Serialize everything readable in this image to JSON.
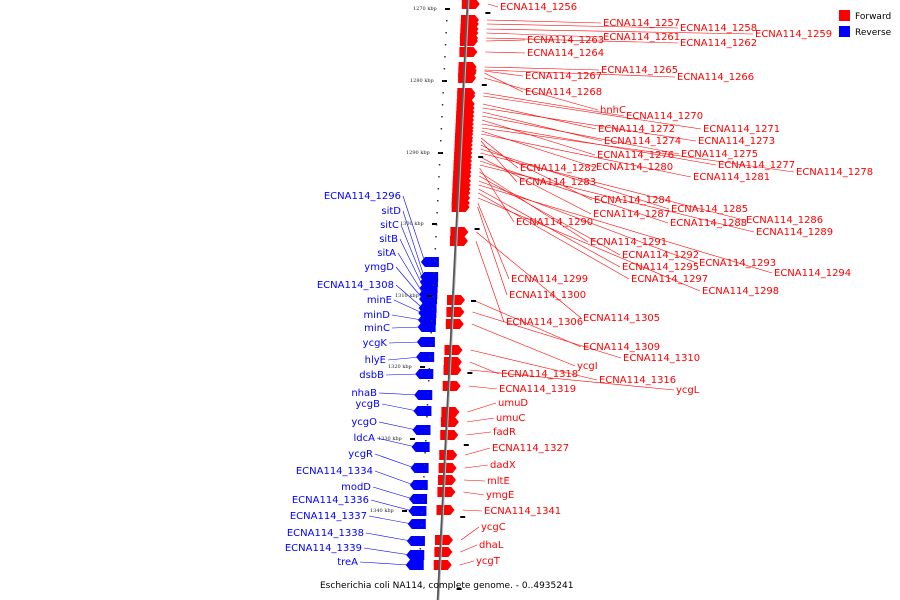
{
  "caption": "Escherichia coli NA114, complete genome. - 0..4935241",
  "legend": [
    {
      "label": "Forward",
      "color": "#ff0000"
    },
    {
      "label": "Reverse",
      "color": "#0000ff"
    }
  ],
  "colors": {
    "forward": "#ff0000",
    "reverse": "#0000ff",
    "backbone": "#888888"
  },
  "ticks": [
    "1270 kbp",
    "1280 kbp",
    "1290 kbp",
    "1300 kbp",
    "1310 kbp",
    "1320 kbp",
    "1330 kbp",
    "1340 kbp"
  ],
  "forward_genes": [
    "ECNA114_1256",
    "ECNA114_1257",
    "ECNA114_1258",
    "ECNA114_1259",
    "ECNA114_1261",
    "ECNA114_1262",
    "ECNA114_1263",
    "ECNA114_1264",
    "ECNA114_1265",
    "ECNA114_1266",
    "ECNA114_1267",
    "ECNA114_1268",
    "hnhC",
    "ECNA114_1270",
    "ECNA114_1271",
    "ECNA114_1272",
    "ECNA114_1273",
    "ECNA114_1274",
    "ECNA114_1275",
    "ECNA114_1276",
    "ECNA114_1277",
    "ECNA114_1278",
    "ECNA114_1280",
    "ECNA114_1281",
    "ECNA114_1282",
    "ECNA114_1283",
    "ECNA114_1284",
    "ECNA114_1285",
    "ECNA114_1286",
    "ECNA114_1287",
    "ECNA114_1288",
    "ECNA114_1289",
    "ECNA114_1290",
    "ECNA114_1291",
    "ECNA114_1292",
    "ECNA114_1293",
    "ECNA114_1294",
    "ECNA114_1295",
    "ECNA114_1297",
    "ECNA114_1298",
    "ECNA114_1299",
    "ECNA114_1300",
    "ECNA114_1305",
    "ECNA114_1306",
    "ECNA114_1309",
    "ECNA114_1310",
    "ycgI",
    "ECNA114_1316",
    "ECNA114_1318",
    "ycgL",
    "ECNA114_1319",
    "umuD",
    "umuC",
    "fadR",
    "ECNA114_1327",
    "dadX",
    "mltE",
    "ymgE",
    "ECNA114_1341",
    "ycgC",
    "dhaL",
    "ycgT"
  ],
  "reverse_genes": [
    "ECNA114_1296",
    "sitD",
    "sitC",
    "sitB",
    "sitA",
    "ymgD",
    "ECNA114_1308",
    "minE",
    "minD",
    "minC",
    "ycgK",
    "hlyE",
    "dsbB",
    "nhaB",
    "ycgB",
    "ycgO",
    "ldcA",
    "ycgR",
    "ECNA114_1334",
    "modD",
    "ECNA114_1336",
    "ECNA114_1337",
    "ECNA114_1338",
    "ECNA114_1339",
    "treA"
  ]
}
